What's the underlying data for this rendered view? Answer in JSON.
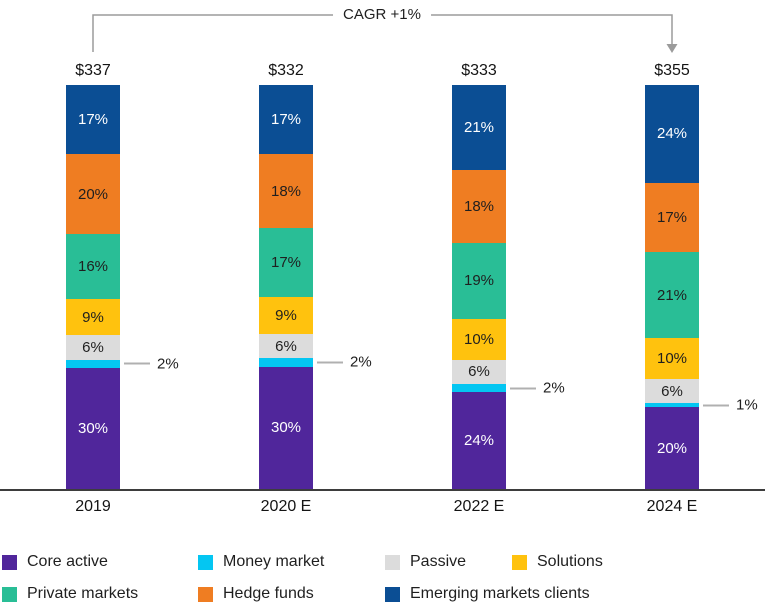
{
  "annotation": {
    "label": "CAGR +1%"
  },
  "chart_data": {
    "type": "bar",
    "stacked": true,
    "value_format": "percent",
    "categories": [
      "2019",
      "2020 E",
      "2022 E",
      "2024 E"
    ],
    "totals": [
      "$337",
      "$332",
      "$333",
      "$355"
    ],
    "series": [
      {
        "name": "Emerging markets clients",
        "color": "#0B4E94",
        "label_color": "#FFFFFF",
        "values": [
          17,
          17,
          21,
          24
        ]
      },
      {
        "name": "Hedge funds",
        "color": "#EF7D22",
        "label_color": "#1F1F1F",
        "values": [
          20,
          18,
          18,
          17
        ]
      },
      {
        "name": "Private markets",
        "color": "#29BE96",
        "label_color": "#1F1F1F",
        "values": [
          16,
          17,
          19,
          21
        ]
      },
      {
        "name": "Solutions",
        "color": "#FFC20E",
        "label_color": "#1F1F1F",
        "values": [
          9,
          9,
          10,
          10
        ]
      },
      {
        "name": "Passive",
        "color": "#DCDCDC",
        "label_color": "#1F1F1F",
        "values": [
          6,
          6,
          6,
          6
        ]
      },
      {
        "name": "Money market",
        "color": "#04C6F2",
        "label_color": "#1F1F1F",
        "values": [
          2,
          2,
          2,
          1
        ],
        "label_outside": true
      },
      {
        "name": "Core active",
        "color": "#50269B",
        "label_color": "#FFFFFF",
        "values": [
          30,
          30,
          24,
          20
        ]
      }
    ],
    "legend_rows": [
      [
        "Core active",
        "Money market",
        "Passive",
        "Solutions"
      ],
      [
        "Private markets",
        "Hedge funds",
        "Emerging markets clients"
      ]
    ],
    "annotation_color": "#9b9b9b",
    "axis_color": "#3d3d3d"
  }
}
